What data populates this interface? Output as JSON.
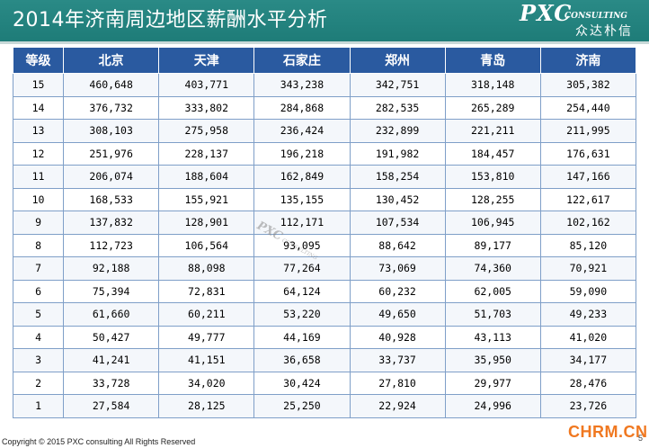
{
  "header": {
    "title": "2014年济南周边地区薪酬水平分析",
    "logo_main": "PXC",
    "logo_sub": "CONSULTING",
    "logo_cn": "众达朴信"
  },
  "table": {
    "columns": [
      "等级",
      "北京",
      "天津",
      "石家庄",
      "郑州",
      "青岛",
      "济南"
    ],
    "rows": [
      [
        "15",
        "460,648",
        "403,771",
        "343,238",
        "342,751",
        "318,148",
        "305,382"
      ],
      [
        "14",
        "376,732",
        "333,802",
        "284,868",
        "282,535",
        "265,289",
        "254,440"
      ],
      [
        "13",
        "308,103",
        "275,958",
        "236,424",
        "232,899",
        "221,211",
        "211,995"
      ],
      [
        "12",
        "251,976",
        "228,137",
        "196,218",
        "191,982",
        "184,457",
        "176,631"
      ],
      [
        "11",
        "206,074",
        "188,604",
        "162,849",
        "158,254",
        "153,810",
        "147,166"
      ],
      [
        "10",
        "168,533",
        "155,921",
        "135,155",
        "130,452",
        "128,255",
        "122,617"
      ],
      [
        "9",
        "137,832",
        "128,901",
        "112,171",
        "107,534",
        "106,945",
        "102,162"
      ],
      [
        "8",
        "112,723",
        "106,564",
        "93,095",
        "88,642",
        "89,177",
        "85,120"
      ],
      [
        "7",
        "92,188",
        "88,098",
        "77,264",
        "73,069",
        "74,360",
        "70,921"
      ],
      [
        "6",
        "75,394",
        "72,831",
        "64,124",
        "60,232",
        "62,005",
        "59,090"
      ],
      [
        "5",
        "61,660",
        "60,211",
        "53,220",
        "49,650",
        "51,703",
        "49,233"
      ],
      [
        "4",
        "50,427",
        "49,777",
        "44,169",
        "40,928",
        "43,113",
        "41,020"
      ],
      [
        "3",
        "41,241",
        "41,151",
        "36,658",
        "33,737",
        "35,950",
        "34,177"
      ],
      [
        "2",
        "33,728",
        "34,020",
        "30,424",
        "27,810",
        "29,977",
        "28,476"
      ],
      [
        "1",
        "27,584",
        "28,125",
        "25,250",
        "22,924",
        "24,996",
        "23,726"
      ]
    ]
  },
  "watermark": {
    "main": "PXC",
    "sub": "CONSULTING"
  },
  "footer": {
    "copyright": "Copyright © 2015 PXC consulting All Rights Reserved",
    "brand": "CHRM.CN",
    "page_number": "5"
  },
  "colors": {
    "header_bg": "#1e7c78",
    "table_header_bg": "#2a5aa0",
    "grid_line": "#7f9fc8",
    "brand_orange": "#f07820"
  }
}
